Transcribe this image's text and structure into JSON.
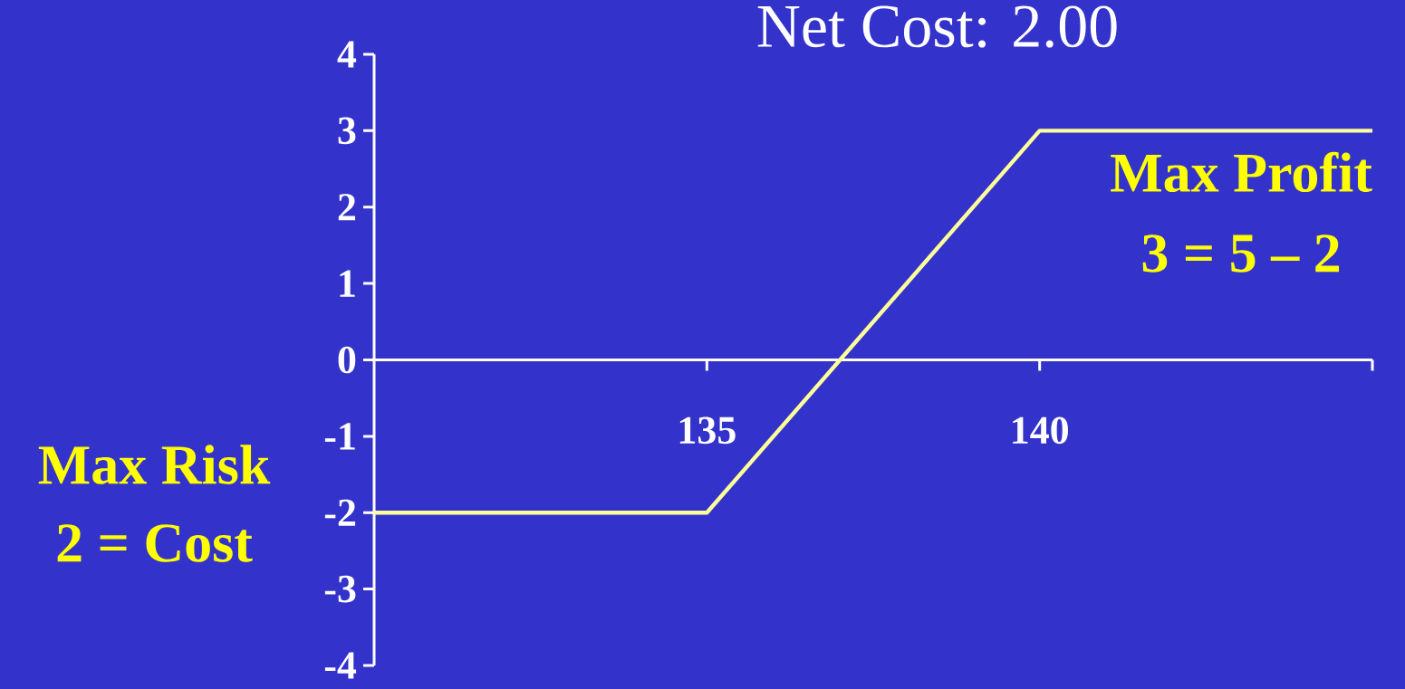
{
  "chart_data": {
    "type": "line",
    "title": "Net Cost: 2.00",
    "x": [
      130,
      135,
      140,
      145
    ],
    "series": [
      {
        "color": "#ffff99",
        "values": [
          -2,
          -2,
          3,
          3
        ]
      }
    ],
    "xlim": [
      130,
      145
    ],
    "xticks": [
      135,
      140,
      {
        "value": 145,
        "label": null
      }
    ],
    "ylim": [
      -4,
      4
    ],
    "yticks": [
      -4,
      -3,
      -2,
      -1,
      0,
      1,
      2,
      3,
      4
    ],
    "annotations": [
      "Max Risk",
      "2 = Cost",
      "Max Profit",
      "3 = 5 – 2"
    ]
  }
}
